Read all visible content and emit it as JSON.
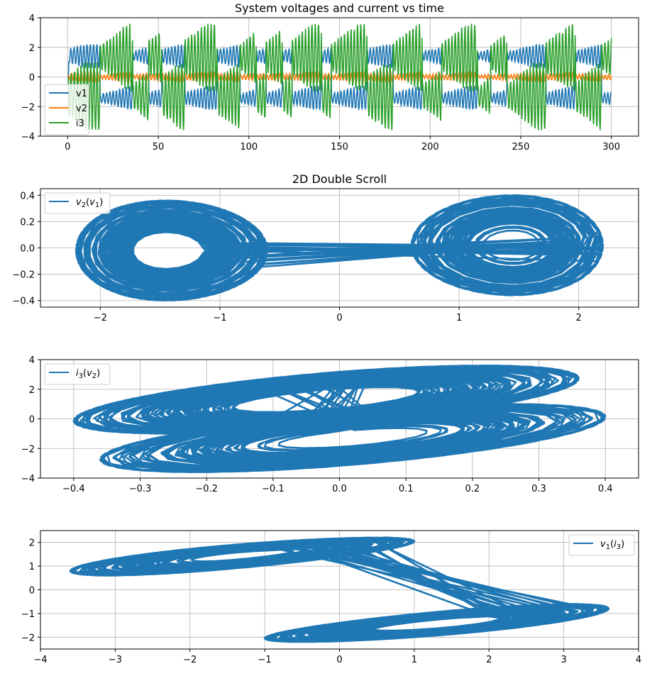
{
  "chart_data": [
    {
      "type": "line",
      "title": "System voltages and current vs time",
      "xlabel": "",
      "ylabel": "",
      "xlim": [
        -15,
        315
      ],
      "ylim": [
        -4,
        4
      ],
      "xticks": [
        0,
        50,
        100,
        150,
        200,
        250,
        300
      ],
      "yticks": [
        -4,
        -2,
        0,
        2,
        4
      ],
      "grid": true,
      "legend_position": "center-left",
      "series": [
        {
          "name": "v1",
          "color": "#1f77b4",
          "x": [
            0,
            300
          ],
          "y_range": [
            -2.2,
            2.2
          ],
          "description": "chaotic switching between two wells near +1.5 and -1.5"
        },
        {
          "name": "v2",
          "color": "#ff7f0e",
          "x": [
            0,
            300
          ],
          "y_range": [
            -0.4,
            0.4
          ],
          "description": "small oscillation near 0"
        },
        {
          "name": "i3",
          "color": "#2ca02c",
          "x": [
            0,
            300
          ],
          "y_range": [
            -3.6,
            3.6
          ],
          "description": "large chaotic oscillation"
        }
      ]
    },
    {
      "type": "line",
      "title": "2D Double Scroll",
      "xlabel": "",
      "ylabel": "",
      "xlim": [
        -2.5,
        2.5
      ],
      "ylim": [
        -0.45,
        0.45
      ],
      "xticks": [
        -2,
        -1,
        0,
        1,
        2
      ],
      "yticks": [
        -0.4,
        -0.2,
        0.0,
        0.2,
        0.4
      ],
      "grid": true,
      "legend_position": "top-left",
      "series": [
        {
          "name": "v2(v1)",
          "color": "#1f77b4",
          "x_range": [
            -2.3,
            2.3
          ],
          "y_range": [
            -0.4,
            0.4
          ]
        }
      ]
    },
    {
      "type": "line",
      "title": "",
      "xlabel": "",
      "ylabel": "",
      "xlim": [
        -0.45,
        0.45
      ],
      "ylim": [
        -4,
        4
      ],
      "xticks": [
        -0.4,
        -0.3,
        -0.2,
        -0.1,
        0.0,
        0.1,
        0.2,
        0.3,
        0.4
      ],
      "yticks": [
        -4,
        -2,
        0,
        2,
        4
      ],
      "grid": true,
      "legend_position": "top-left",
      "series": [
        {
          "name": "i3(v2)",
          "color": "#1f77b4",
          "x_range": [
            -0.41,
            0.41
          ],
          "y_range": [
            -3.6,
            3.6
          ]
        }
      ]
    },
    {
      "type": "line",
      "title": "",
      "xlabel": "",
      "ylabel": "",
      "xlim": [
        -4,
        4
      ],
      "ylim": [
        -2.5,
        2.5
      ],
      "xticks": [
        -4,
        -3,
        -2,
        -1,
        0,
        1,
        2,
        3,
        4
      ],
      "yticks": [
        -2,
        -1,
        0,
        1,
        2
      ],
      "grid": true,
      "legend_position": "top-right",
      "series": [
        {
          "name": "v1(i3)",
          "color": "#1f77b4",
          "x_range": [
            -3.65,
            3.65
          ],
          "y_range": [
            -2.2,
            2.2
          ]
        }
      ]
    }
  ]
}
